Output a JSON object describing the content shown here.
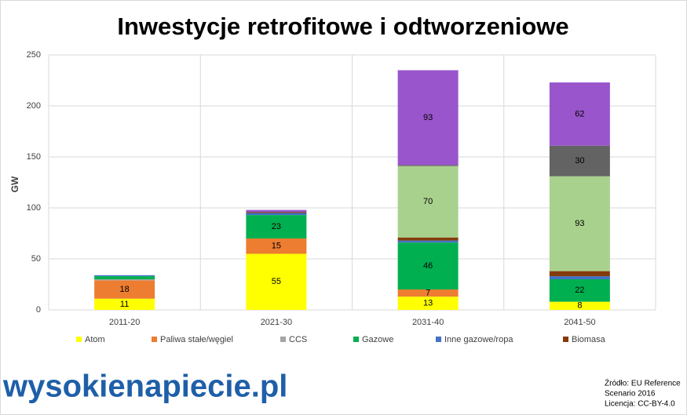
{
  "chart_data": {
    "type": "stacked_bar",
    "title": "Inwestycje retrofitowe i odtworzeniowe",
    "y_label": "GW",
    "categories": [
      "2011-20",
      "2021-30",
      "2031-40",
      "2041-50"
    ],
    "series": [
      {
        "name": "Atom",
        "color": "#ffff00",
        "values": [
          11,
          55,
          13,
          8
        ]
      },
      {
        "name": "Paliwa stałe/węgiel",
        "color": "#ed7d31",
        "values": [
          18,
          15,
          7,
          0
        ]
      },
      {
        "name": "CCS",
        "color": "#a5a5a5",
        "values": [
          1,
          0,
          0,
          0
        ]
      },
      {
        "name": "Gazowe",
        "color": "#00b050",
        "values": [
          3,
          23,
          46,
          22
        ]
      },
      {
        "name": "Inne gazowe/ropa",
        "color": "#4472c4",
        "values": [
          1,
          2,
          2,
          3
        ]
      },
      {
        "name": "Biomasa",
        "color": "#843c0c",
        "values": [
          0,
          1,
          3,
          5
        ]
      },
      {
        "color": "#a9d18e",
        "values": [
          0,
          0,
          70,
          93
        ]
      },
      {
        "color": "#636363",
        "values": [
          0,
          0,
          1,
          30
        ]
      },
      {
        "color": "#9955cc",
        "values": [
          0,
          2,
          93,
          62
        ]
      }
    ],
    "ylim": [
      0,
      250
    ],
    "yticks": [
      0,
      50,
      100,
      150,
      200,
      250
    ],
    "grid": true
  },
  "footer": {
    "logo": "wysokienapiecie.pl",
    "source": [
      "Źródło: EU Reference",
      "Scenario 2016",
      "Licencja: CC-BY-4.0"
    ]
  }
}
